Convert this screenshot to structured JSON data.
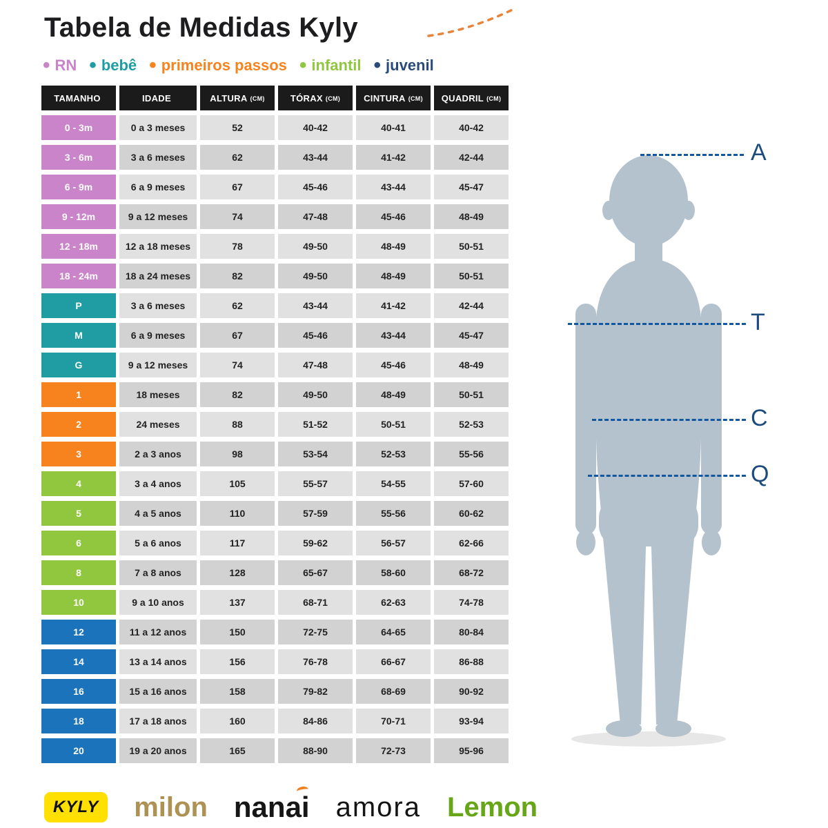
{
  "page": {
    "title": "Tabela de Medidas Kyly"
  },
  "legend": {
    "items": [
      {
        "id": "rn",
        "label": "RN",
        "color": "#CA84CA"
      },
      {
        "id": "bebe",
        "label": "bebê",
        "color": "#1F9DA3"
      },
      {
        "id": "primeiros-passos",
        "label": "primeiros passos",
        "color": "#F6831D"
      },
      {
        "id": "infantil",
        "label": "infantil",
        "color": "#90C73E"
      },
      {
        "id": "juvenil",
        "label": "juvenil",
        "color": "#2A4B79"
      }
    ]
  },
  "table": {
    "headers": [
      {
        "label": "TAMANHO",
        "unit": ""
      },
      {
        "label": "IDADE",
        "unit": ""
      },
      {
        "label": "ALTURA",
        "unit": "(CM)"
      },
      {
        "label": "TÓRAX",
        "unit": "(CM)"
      },
      {
        "label": "CINTURA",
        "unit": "(CM)"
      },
      {
        "label": "QUADRIL",
        "unit": "(CM)"
      }
    ],
    "rows": [
      {
        "category": "rn",
        "size": "0 - 3m",
        "age": "0 a 3 meses",
        "height": "52",
        "chest": "40-42",
        "waist": "40-41",
        "hip": "40-42"
      },
      {
        "category": "rn",
        "size": "3 - 6m",
        "age": "3 a 6 meses",
        "height": "62",
        "chest": "43-44",
        "waist": "41-42",
        "hip": "42-44"
      },
      {
        "category": "rn",
        "size": "6 - 9m",
        "age": "6 a 9 meses",
        "height": "67",
        "chest": "45-46",
        "waist": "43-44",
        "hip": "45-47"
      },
      {
        "category": "rn",
        "size": "9 - 12m",
        "age": "9 a 12 meses",
        "height": "74",
        "chest": "47-48",
        "waist": "45-46",
        "hip": "48-49"
      },
      {
        "category": "rn",
        "size": "12 - 18m",
        "age": "12 a 18 meses",
        "height": "78",
        "chest": "49-50",
        "waist": "48-49",
        "hip": "50-51"
      },
      {
        "category": "rn",
        "size": "18 - 24m",
        "age": "18 a 24 meses",
        "height": "82",
        "chest": "49-50",
        "waist": "48-49",
        "hip": "50-51"
      },
      {
        "category": "bebe",
        "size": "P",
        "age": "3 a 6 meses",
        "height": "62",
        "chest": "43-44",
        "waist": "41-42",
        "hip": "42-44"
      },
      {
        "category": "bebe",
        "size": "M",
        "age": "6 a 9 meses",
        "height": "67",
        "chest": "45-46",
        "waist": "43-44",
        "hip": "45-47"
      },
      {
        "category": "bebe",
        "size": "G",
        "age": "9 a 12 meses",
        "height": "74",
        "chest": "47-48",
        "waist": "45-46",
        "hip": "48-49"
      },
      {
        "category": "pp",
        "size": "1",
        "age": "18 meses",
        "height": "82",
        "chest": "49-50",
        "waist": "48-49",
        "hip": "50-51"
      },
      {
        "category": "pp",
        "size": "2",
        "age": "24 meses",
        "height": "88",
        "chest": "51-52",
        "waist": "50-51",
        "hip": "52-53"
      },
      {
        "category": "pp",
        "size": "3",
        "age": "2 a 3 anos",
        "height": "98",
        "chest": "53-54",
        "waist": "52-53",
        "hip": "55-56"
      },
      {
        "category": "infantil",
        "size": "4",
        "age": "3 a 4 anos",
        "height": "105",
        "chest": "55-57",
        "waist": "54-55",
        "hip": "57-60"
      },
      {
        "category": "infantil",
        "size": "5",
        "age": "4 a 5 anos",
        "height": "110",
        "chest": "57-59",
        "waist": "55-56",
        "hip": "60-62"
      },
      {
        "category": "infantil",
        "size": "6",
        "age": "5 a 6 anos",
        "height": "117",
        "chest": "59-62",
        "waist": "56-57",
        "hip": "62-66"
      },
      {
        "category": "infantil",
        "size": "8",
        "age": "7 a 8 anos",
        "height": "128",
        "chest": "65-67",
        "waist": "58-60",
        "hip": "68-72"
      },
      {
        "category": "infantil",
        "size": "10",
        "age": "9 a 10 anos",
        "height": "137",
        "chest": "68-71",
        "waist": "62-63",
        "hip": "74-78"
      },
      {
        "category": "juvenil",
        "size": "12",
        "age": "11 a 12 anos",
        "height": "150",
        "chest": "72-75",
        "waist": "64-65",
        "hip": "80-84"
      },
      {
        "category": "juvenil",
        "size": "14",
        "age": "13 a 14 anos",
        "height": "156",
        "chest": "76-78",
        "waist": "66-67",
        "hip": "86-88"
      },
      {
        "category": "juvenil",
        "size": "16",
        "age": "15 a 16 anos",
        "height": "158",
        "chest": "79-82",
        "waist": "68-69",
        "hip": "90-92"
      },
      {
        "category": "juvenil",
        "size": "18",
        "age": "17 a 18 anos",
        "height": "160",
        "chest": "84-86",
        "waist": "70-71",
        "hip": "93-94"
      },
      {
        "category": "juvenil",
        "size": "20",
        "age": "19 a 20 anos",
        "height": "165",
        "chest": "88-90",
        "waist": "72-73",
        "hip": "95-96"
      }
    ]
  },
  "diagram": {
    "labels": [
      {
        "letter": "A"
      },
      {
        "letter": "T"
      },
      {
        "letter": "C"
      },
      {
        "letter": "Q"
      }
    ]
  },
  "footer": {
    "brands": [
      {
        "name": "KYLY"
      },
      {
        "name": "milon"
      },
      {
        "name": "nanai"
      },
      {
        "name": "amora"
      },
      {
        "name": "Lemon"
      }
    ]
  },
  "colors": {
    "rn": "#CA84CA",
    "bebe": "#1F9DA3",
    "primeiros_passos": "#F6831D",
    "infantil": "#90C73E",
    "juvenil_cell": "#1B73BC",
    "juvenil_legend": "#2A4B79",
    "header_bg": "#1B1B1B",
    "row_gray": "#E1E1E1",
    "row_gray_alt": "#D2D2D2",
    "measure_line": "#13579F",
    "silhouette": "#B3C2CC",
    "kyly_yellow": "#FFE000",
    "milon_gold": "#AE9254",
    "lemon_green": "#67A617",
    "accent_orange": "#EF7F1F"
  }
}
